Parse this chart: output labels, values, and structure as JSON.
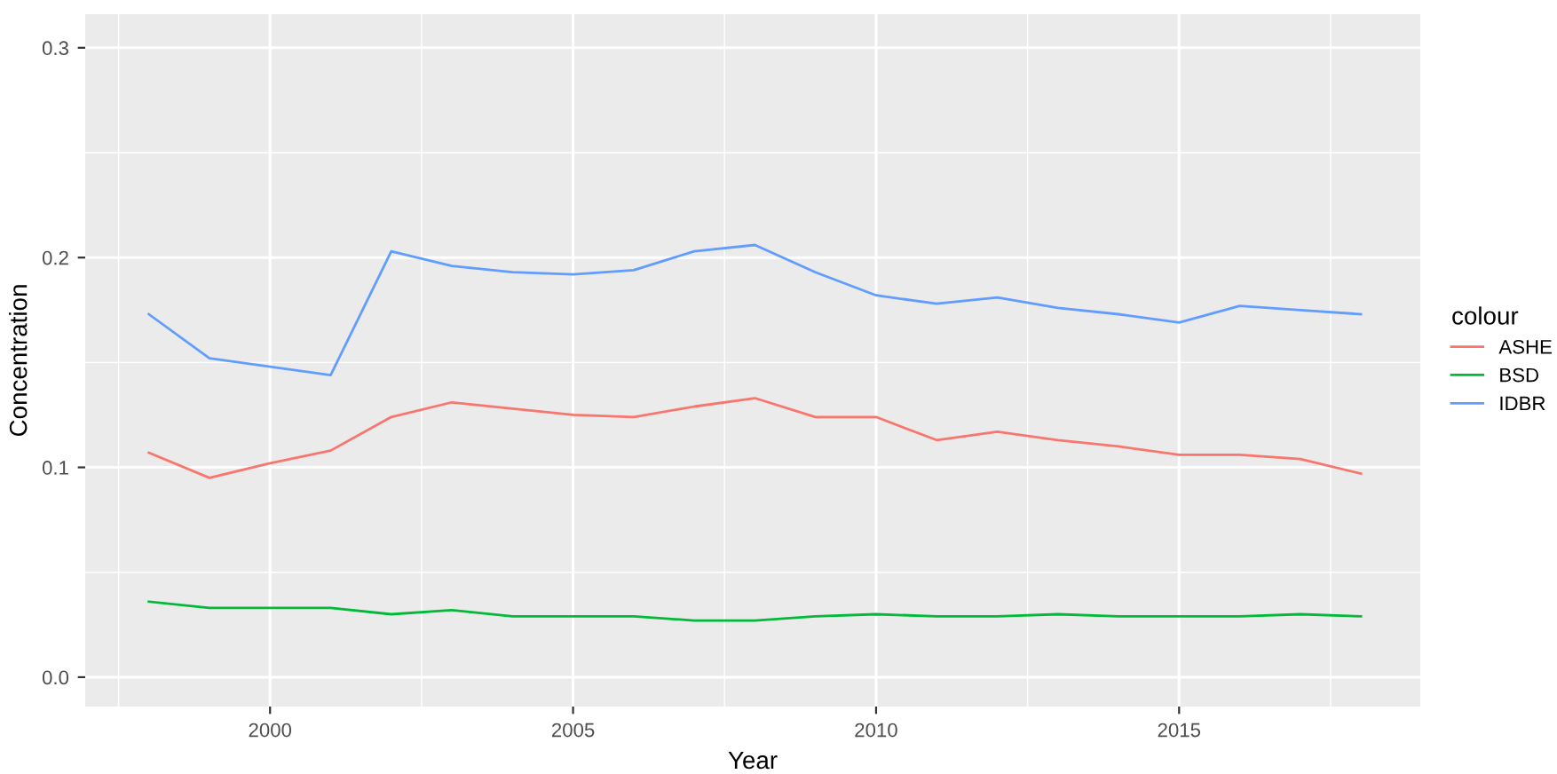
{
  "chart_data": {
    "type": "line",
    "xlabel": "Year",
    "ylabel": "Concentration",
    "legend_title": "colour",
    "x": [
      1998,
      1999,
      2000,
      2001,
      2002,
      2003,
      2004,
      2005,
      2006,
      2007,
      2008,
      2009,
      2010,
      2011,
      2012,
      2013,
      2014,
      2015,
      2016,
      2017,
      2018
    ],
    "series": [
      {
        "name": "ASHE",
        "color": "#f8766d",
        "values": [
          0.107,
          0.095,
          0.102,
          0.108,
          0.124,
          0.131,
          0.128,
          0.125,
          0.124,
          0.129,
          0.133,
          0.124,
          0.124,
          0.113,
          0.117,
          0.113,
          0.11,
          0.106,
          0.106,
          0.104,
          0.097
        ]
      },
      {
        "name": "BSD",
        "color": "#00ba38",
        "values": [
          0.036,
          0.033,
          0.033,
          0.033,
          0.03,
          0.032,
          0.029,
          0.029,
          0.029,
          0.027,
          0.027,
          0.029,
          0.03,
          0.029,
          0.029,
          0.03,
          0.029,
          0.029,
          0.029,
          0.03,
          0.029
        ]
      },
      {
        "name": "IDBR",
        "color": "#619cff",
        "values": [
          0.173,
          0.152,
          0.148,
          0.144,
          0.203,
          0.196,
          0.193,
          0.192,
          0.194,
          0.203,
          0.206,
          0.193,
          0.182,
          0.178,
          0.181,
          0.176,
          0.173,
          0.169,
          0.177,
          0.175,
          0.173
        ]
      }
    ],
    "xlim": [
      1996.95,
      2018.98
    ],
    "xticks": [
      2000,
      2005,
      2010,
      2015
    ],
    "ylim": [
      -0.014,
      0.316
    ],
    "yticks": [
      {
        "value": 0,
        "label": "0.0"
      },
      {
        "value": 0.1,
        "label": "0.1"
      },
      {
        "value": 0.2,
        "label": "0.2"
      },
      {
        "value": 0.3,
        "label": "0.3"
      }
    ],
    "grid": true,
    "legend": "right",
    "marker": "none",
    "line_style": "solid"
  }
}
